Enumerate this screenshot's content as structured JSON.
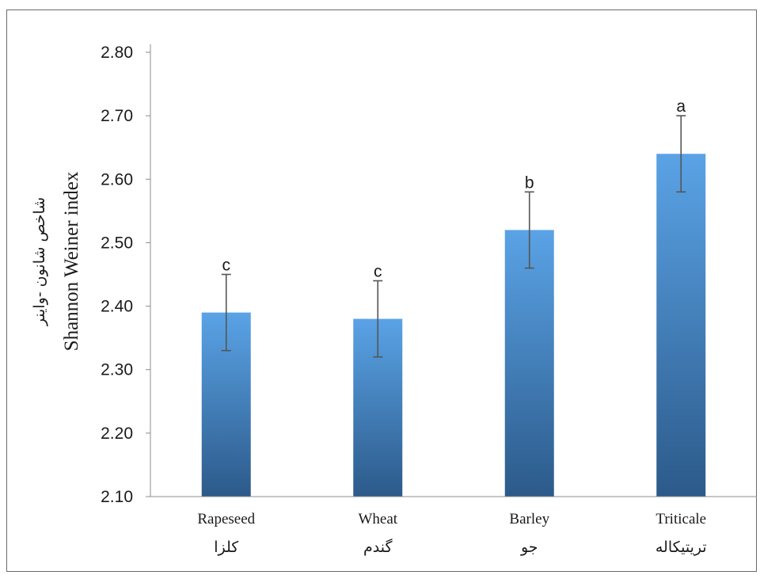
{
  "chart_data": {
    "type": "bar",
    "categories": [
      "Rapeseed",
      "Wheat",
      "Barley",
      "Triticale"
    ],
    "categories_alt": [
      "کلزا",
      "گندم",
      "جو",
      "تریتیکاله"
    ],
    "values": [
      2.39,
      2.38,
      2.52,
      2.64
    ],
    "error": [
      0.06,
      0.06,
      0.06,
      0.06
    ],
    "significance": [
      "c",
      "c",
      "b",
      "a"
    ],
    "ylabel": "Shannon Weiner index",
    "ylabel_alt": "شاخص شانون -واینر",
    "ylim": [
      2.1,
      2.8
    ],
    "yticks": [
      "2.10",
      "2.20",
      "2.30",
      "2.40",
      "2.50",
      "2.60",
      "2.70",
      "2.80"
    ],
    "grid": false,
    "legend": "none",
    "colors": {
      "bar_top": "#5aa3e6",
      "bar_bottom": "#2c5a8a",
      "axis": "#8c8c8c",
      "error_bar": "#555555"
    }
  }
}
